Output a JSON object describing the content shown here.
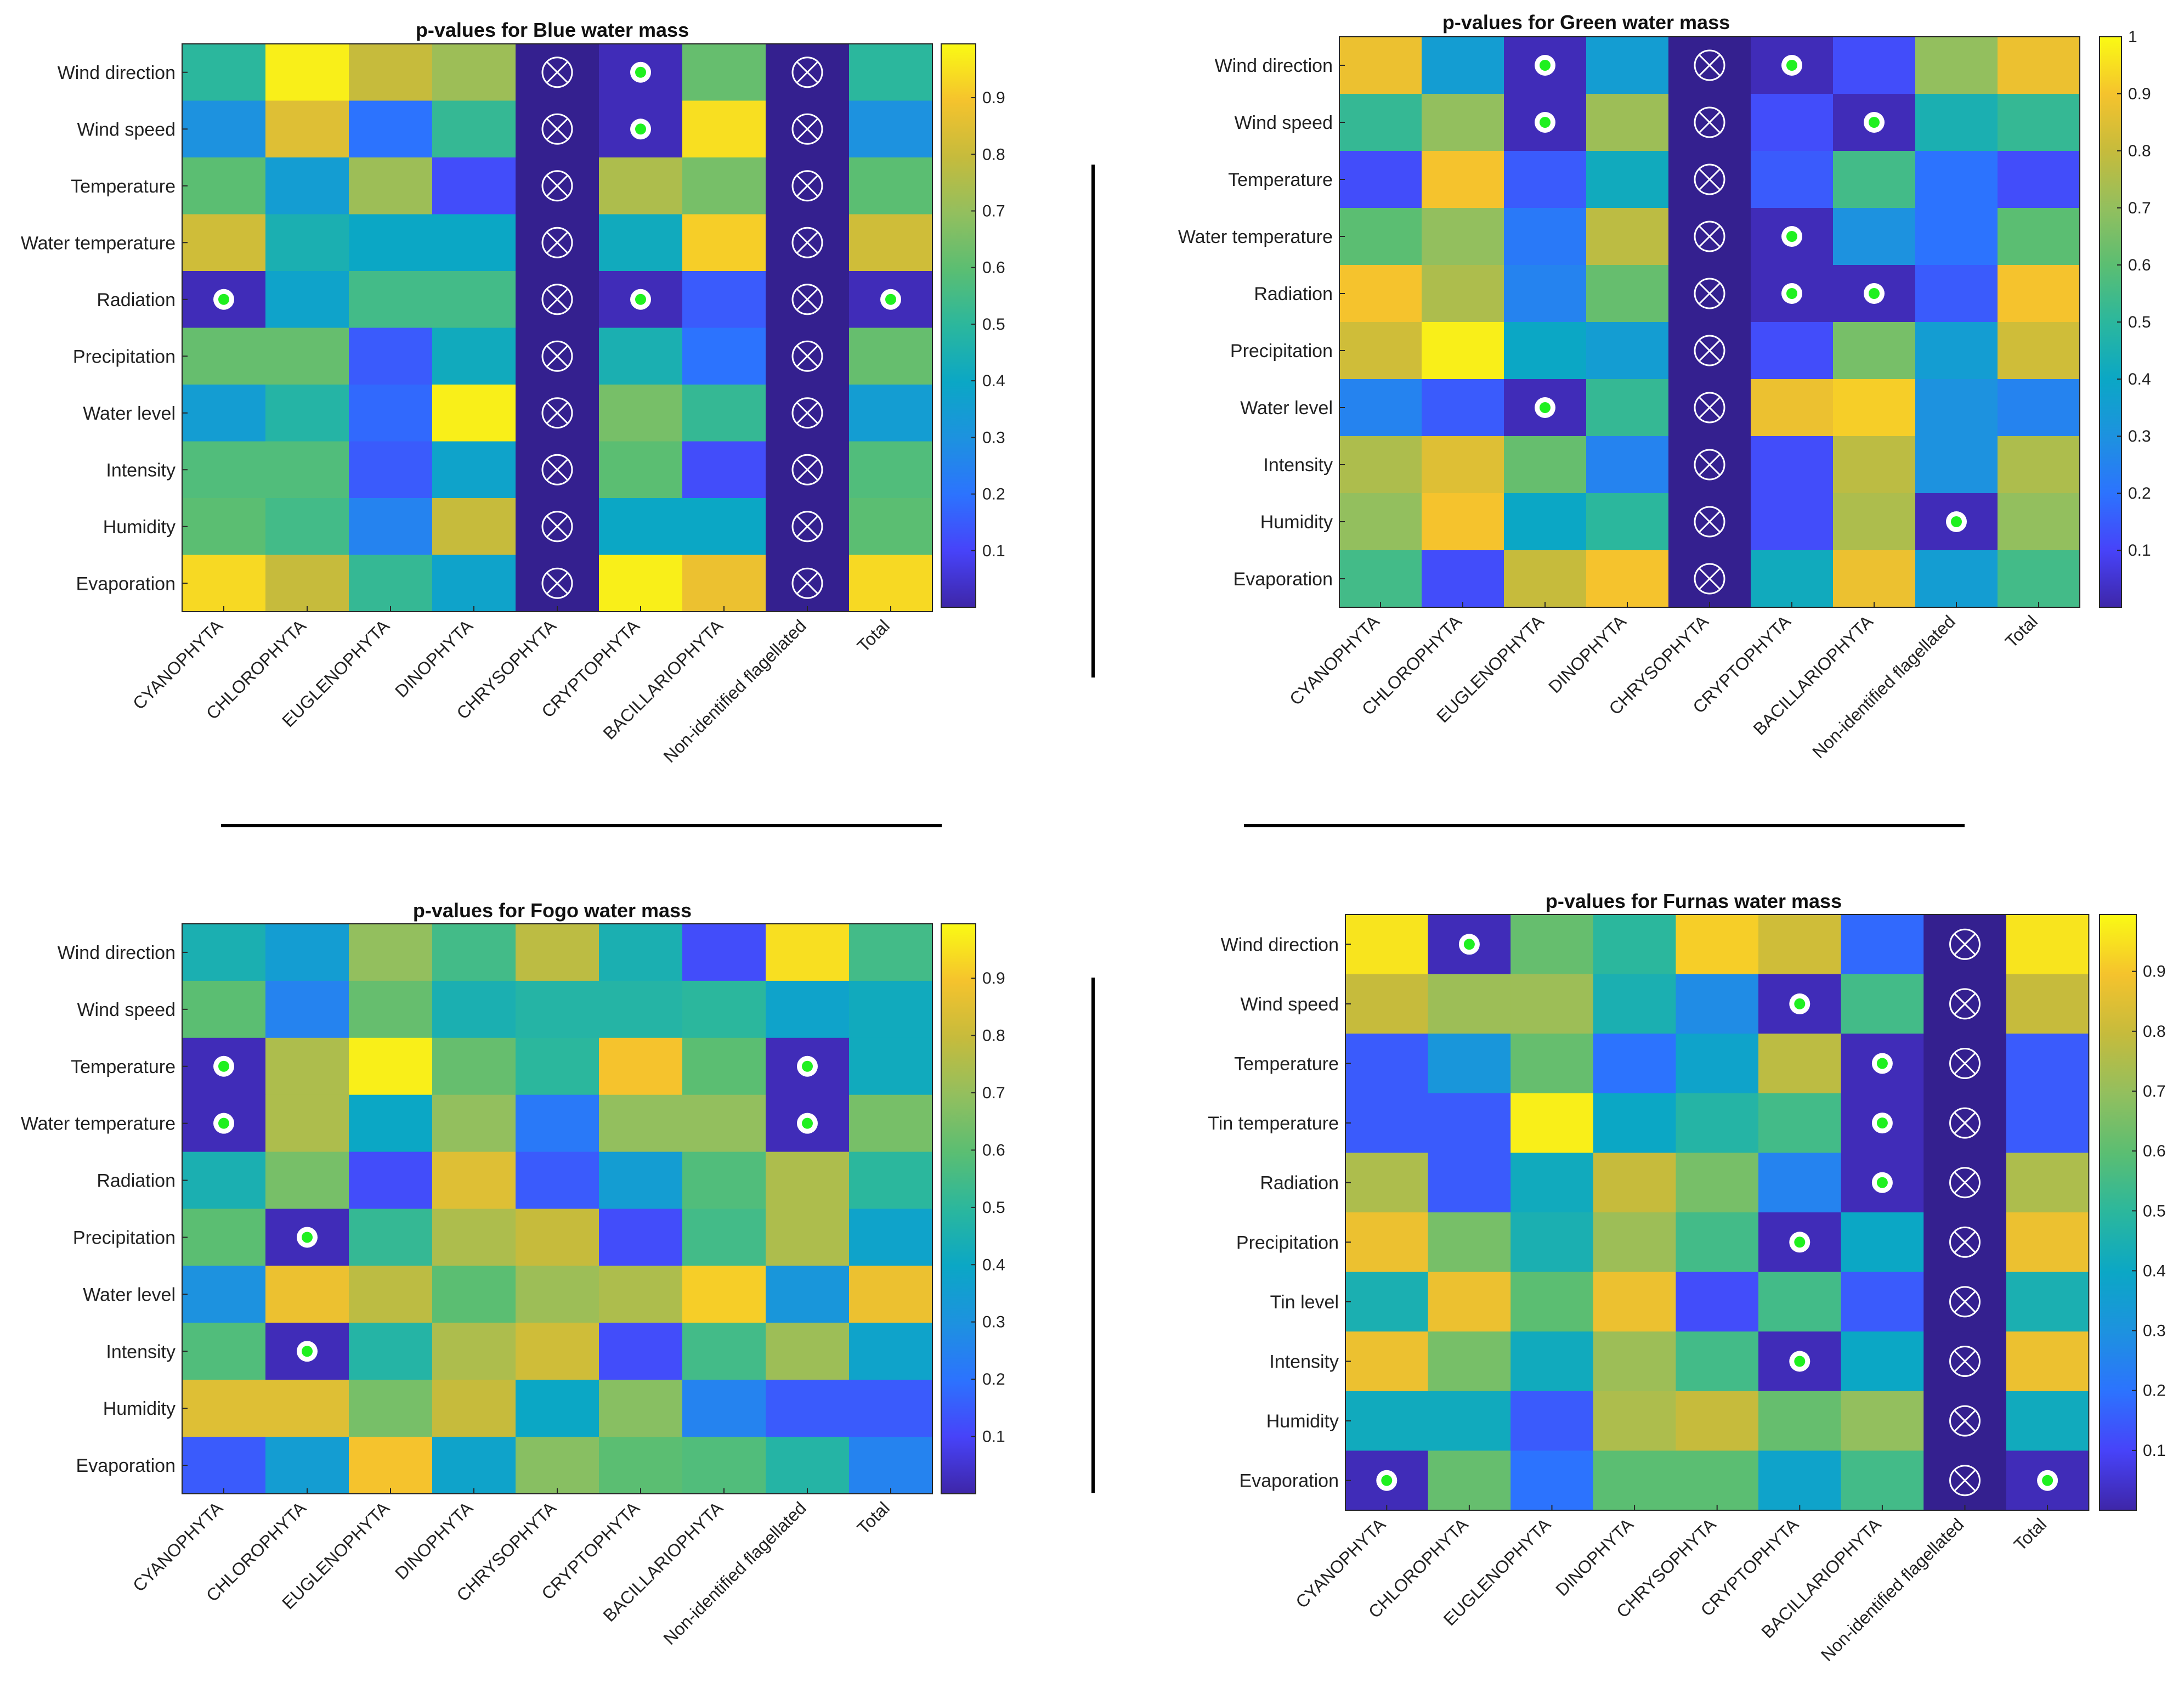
{
  "chart_data": [
    {
      "type": "heatmap",
      "title": "p-values for Blue water mass",
      "rows": [
        "Wind direction",
        "Wind speed",
        "Temperature",
        "Water temperature",
        "Radiation",
        "Precipitation",
        "Water level",
        "Intensity",
        "Humidity",
        "Evaporation"
      ],
      "columns": [
        "CYANOPHYTA",
        "CHLOROPHYTA",
        "EUGLENOPHYTA",
        "DINOPHYTA",
        "CHRYSOPHYTA",
        "CRYPTOPHYTA",
        "BACILLARIOPHYTA",
        "Non-identified flagellated",
        "Total"
      ],
      "values": [
        [
          0.5,
          0.98,
          0.8,
          0.72,
          null,
          0.02,
          0.62,
          null,
          0.5
        ],
        [
          0.3,
          0.85,
          0.2,
          0.52,
          null,
          0.02,
          0.95,
          null,
          0.3
        ],
        [
          0.6,
          0.35,
          0.72,
          0.12,
          null,
          0.75,
          0.65,
          null,
          0.6
        ],
        [
          0.82,
          0.45,
          0.4,
          0.4,
          null,
          0.42,
          0.92,
          null,
          0.82
        ],
        [
          0.02,
          0.38,
          0.55,
          0.55,
          null,
          0.02,
          0.15,
          null,
          0.02
        ],
        [
          0.62,
          0.62,
          0.15,
          0.42,
          null,
          0.45,
          0.2,
          null,
          0.62
        ],
        [
          0.35,
          0.48,
          0.18,
          0.98,
          null,
          0.65,
          0.52,
          null,
          0.35
        ],
        [
          0.58,
          0.58,
          0.15,
          0.38,
          null,
          0.6,
          0.12,
          null,
          0.58
        ],
        [
          0.6,
          0.55,
          0.25,
          0.8,
          null,
          0.4,
          0.4,
          null,
          0.6
        ],
        [
          0.94,
          0.8,
          0.52,
          0.38,
          null,
          0.98,
          0.88,
          null,
          0.94
        ]
      ],
      "significant": [
        [
          0,
          5
        ],
        [
          1,
          5
        ],
        [
          4,
          0
        ],
        [
          4,
          5
        ],
        [
          4,
          8
        ]
      ],
      "excluded_columns": [
        4,
        7
      ],
      "colorbar": {
        "min": 0,
        "max": 1,
        "ticks": [
          "0.1",
          "0.2",
          "0.3",
          "0.4",
          "0.5",
          "0.6",
          "0.7",
          "0.8",
          "0.9"
        ]
      }
    },
    {
      "type": "heatmap",
      "title": "p-values for Green water mass",
      "rows": [
        "Wind direction",
        "Wind speed",
        "Temperature",
        "Water temperature",
        "Radiation",
        "Precipitation",
        "Water  level",
        "Intensity",
        "Humidity",
        "Evaporation"
      ],
      "columns": [
        "CYANOPHYTA",
        "CHLOROPHYTA",
        "EUGLENOPHYTA",
        "DINOPHYTA",
        "CHRYSOPHYTA",
        "CRYPTOPHYTA",
        "BACILLARIOPHYTA",
        "Non-identified flagellated",
        "Total"
      ],
      "values": [
        [
          0.88,
          0.35,
          0.02,
          0.35,
          null,
          0.02,
          0.12,
          0.7,
          0.88
        ],
        [
          0.52,
          0.7,
          0.02,
          0.72,
          null,
          0.12,
          0.02,
          0.45,
          0.52
        ],
        [
          0.12,
          0.9,
          0.15,
          0.42,
          null,
          0.15,
          0.55,
          0.2,
          0.12
        ],
        [
          0.6,
          0.7,
          0.22,
          0.78,
          null,
          0.02,
          0.3,
          0.2,
          0.6
        ],
        [
          0.9,
          0.75,
          0.25,
          0.62,
          null,
          0.02,
          0.02,
          0.15,
          0.9
        ],
        [
          0.82,
          0.98,
          0.4,
          0.35,
          null,
          0.12,
          0.65,
          0.35,
          0.82
        ],
        [
          0.25,
          0.15,
          0.02,
          0.52,
          null,
          0.88,
          0.92,
          0.3,
          0.25
        ],
        [
          0.75,
          0.85,
          0.62,
          0.25,
          null,
          0.12,
          0.78,
          0.3,
          0.75
        ],
        [
          0.7,
          0.9,
          0.4,
          0.5,
          null,
          0.12,
          0.75,
          0.02,
          0.7
        ],
        [
          0.55,
          0.12,
          0.8,
          0.9,
          null,
          0.42,
          0.88,
          0.35,
          0.55
        ]
      ],
      "significant": [
        [
          0,
          2
        ],
        [
          0,
          5
        ],
        [
          1,
          2
        ],
        [
          1,
          6
        ],
        [
          3,
          5
        ],
        [
          4,
          5
        ],
        [
          4,
          6
        ],
        [
          6,
          2
        ],
        [
          8,
          7
        ]
      ],
      "excluded_columns": [
        4
      ],
      "colorbar": {
        "min": 0,
        "max": 1,
        "ticks": [
          "0.1",
          "0.2",
          "0.3",
          "0.4",
          "0.5",
          "0.6",
          "0.7",
          "0.8",
          "0.9",
          "1"
        ]
      }
    },
    {
      "type": "heatmap",
      "title": "p-values for Fogo water mass",
      "rows": [
        "Wind direction",
        "Wind speed",
        "Temperature",
        "Water temperature",
        "Radiation",
        "Precipitation",
        "Water  level",
        "Intensity",
        "Humidity",
        "Evaporation"
      ],
      "columns": [
        "CYANOPHYTA",
        "CHLOROPHYTA",
        "EUGLENOPHYTA",
        "DINOPHYTA",
        "CHRYSOPHYTA",
        "CRYPTOPHYTA",
        "BACILLARIOPHYTA",
        "Non-identified flagellated",
        "Total"
      ],
      "values": [
        [
          0.45,
          0.35,
          0.7,
          0.55,
          0.78,
          0.45,
          0.12,
          0.95,
          0.55
        ],
        [
          0.6,
          0.25,
          0.62,
          0.45,
          0.48,
          0.48,
          0.5,
          0.38,
          0.42
        ],
        [
          0.02,
          0.75,
          0.98,
          0.62,
          0.5,
          0.9,
          0.6,
          0.02,
          0.42
        ],
        [
          0.02,
          0.75,
          0.4,
          0.7,
          0.22,
          0.7,
          0.7,
          0.02,
          0.65
        ],
        [
          0.45,
          0.65,
          0.12,
          0.85,
          0.15,
          0.35,
          0.58,
          0.75,
          0.5
        ],
        [
          0.6,
          0.02,
          0.52,
          0.75,
          0.8,
          0.12,
          0.55,
          0.75,
          0.38
        ],
        [
          0.3,
          0.88,
          0.78,
          0.6,
          0.72,
          0.75,
          0.92,
          0.32,
          0.88
        ],
        [
          0.58,
          0.02,
          0.48,
          0.75,
          0.82,
          0.12,
          0.55,
          0.72,
          0.38
        ],
        [
          0.85,
          0.85,
          0.65,
          0.8,
          0.4,
          0.68,
          0.25,
          0.15,
          0.15
        ],
        [
          0.15,
          0.35,
          0.9,
          0.38,
          0.68,
          0.6,
          0.58,
          0.48,
          0.25
        ]
      ],
      "significant": [
        [
          2,
          0
        ],
        [
          2,
          7
        ],
        [
          3,
          0
        ],
        [
          3,
          7
        ],
        [
          5,
          1
        ],
        [
          7,
          1
        ]
      ],
      "excluded_columns": [],
      "colorbar": {
        "min": 0,
        "max": 1,
        "ticks": [
          "0.1",
          "0.2",
          "0.3",
          "0.4",
          "0.5",
          "0.6",
          "0.7",
          "0.8",
          "0.9"
        ]
      }
    },
    {
      "type": "heatmap",
      "title": "p-values for Furnas water mass",
      "rows": [
        "Wind direction",
        "Wind speed",
        "Temperature",
        "Tin temperature",
        "Radiation",
        "Precipitation",
        "Tin level",
        "Intensity",
        "Humidity",
        "Evaporation"
      ],
      "columns": [
        "CYANOPHYTA",
        "CHLOROPHYTA",
        "EUGLENOPHYTA",
        "DINOPHYTA",
        "CHRYSOPHYTA",
        "CRYPTOPHYTA",
        "BACILLARIOPHYTA",
        "Non-identified flagellated",
        "Total"
      ],
      "values": [
        [
          0.96,
          0.02,
          0.62,
          0.5,
          0.92,
          0.82,
          0.18,
          null,
          0.96
        ],
        [
          0.8,
          0.72,
          0.72,
          0.45,
          0.28,
          0.02,
          0.55,
          null,
          0.8
        ],
        [
          0.15,
          0.32,
          0.62,
          0.2,
          0.38,
          0.78,
          0.02,
          null,
          0.15
        ],
        [
          0.15,
          0.15,
          0.98,
          0.4,
          0.48,
          0.55,
          0.02,
          null,
          0.15
        ],
        [
          0.75,
          0.15,
          0.42,
          0.8,
          0.65,
          0.25,
          0.02,
          null,
          0.75
        ],
        [
          0.88,
          0.65,
          0.45,
          0.72,
          0.55,
          0.02,
          0.4,
          null,
          0.88
        ],
        [
          0.45,
          0.88,
          0.6,
          0.88,
          0.12,
          0.55,
          0.15,
          null,
          0.45
        ],
        [
          0.88,
          0.65,
          0.42,
          0.72,
          0.55,
          0.02,
          0.4,
          null,
          0.88
        ],
        [
          0.42,
          0.42,
          0.15,
          0.75,
          0.8,
          0.62,
          0.7,
          null,
          0.42
        ],
        [
          0.02,
          0.62,
          0.2,
          0.6,
          0.6,
          0.38,
          0.55,
          null,
          0.02
        ]
      ],
      "significant": [
        [
          0,
          1
        ],
        [
          1,
          5
        ],
        [
          2,
          6
        ],
        [
          3,
          6
        ],
        [
          4,
          6
        ],
        [
          5,
          5
        ],
        [
          7,
          5
        ],
        [
          9,
          0
        ],
        [
          9,
          8
        ]
      ],
      "excluded_columns": [
        7
      ],
      "colorbar": {
        "min": 0,
        "max": 1,
        "ticks": [
          "0.1",
          "0.2",
          "0.3",
          "0.4",
          "0.5",
          "0.6",
          "0.7",
          "0.8",
          "0.9"
        ]
      }
    }
  ],
  "palette": [
    "#3e26a8",
    "#4743f9",
    "#2c73fe",
    "#1d92df",
    "#0ba7c5",
    "#2bb79d",
    "#5bbe72",
    "#93bf5e",
    "#c6bb3c",
    "#f5c32d",
    "#fafa14"
  ],
  "colors": {
    "excluded_cell": "#34208f",
    "marker_ring": "#ffffff",
    "marker_dot": "#1ff01f",
    "separator": "#000000",
    "axis": "#262626"
  }
}
